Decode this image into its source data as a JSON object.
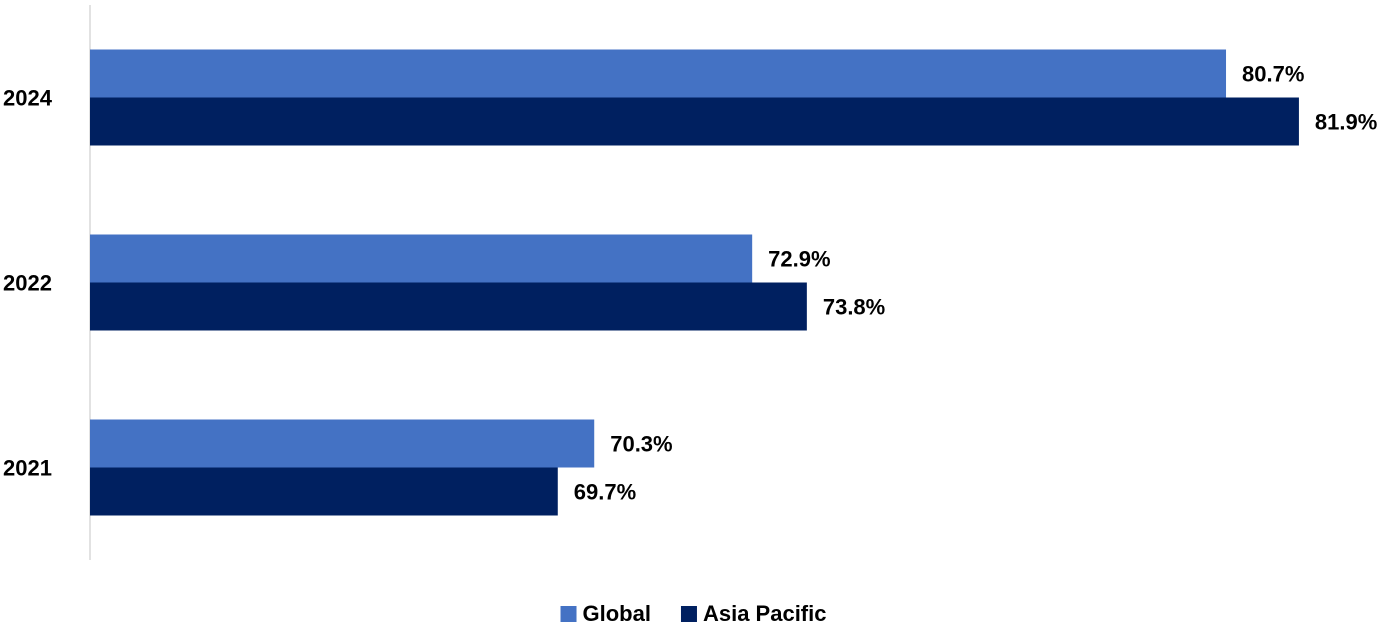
{
  "chart_data": {
    "type": "hbar",
    "categories": [
      "2024",
      "2022",
      "2021"
    ],
    "series": [
      {
        "name": "Global",
        "color": "#4472c4",
        "values": [
          80.7,
          72.9,
          70.3
        ],
        "value_labels": [
          "80.7%",
          "72.9%",
          "70.3%"
        ]
      },
      {
        "name": "Asia Pacific",
        "color": "#002060",
        "values": [
          81.9,
          73.8,
          69.7
        ],
        "value_labels": [
          "81.9%",
          "73.8%",
          "69.7%"
        ]
      }
    ],
    "xlim": [
      62,
      82
    ],
    "legend": "bottom"
  }
}
